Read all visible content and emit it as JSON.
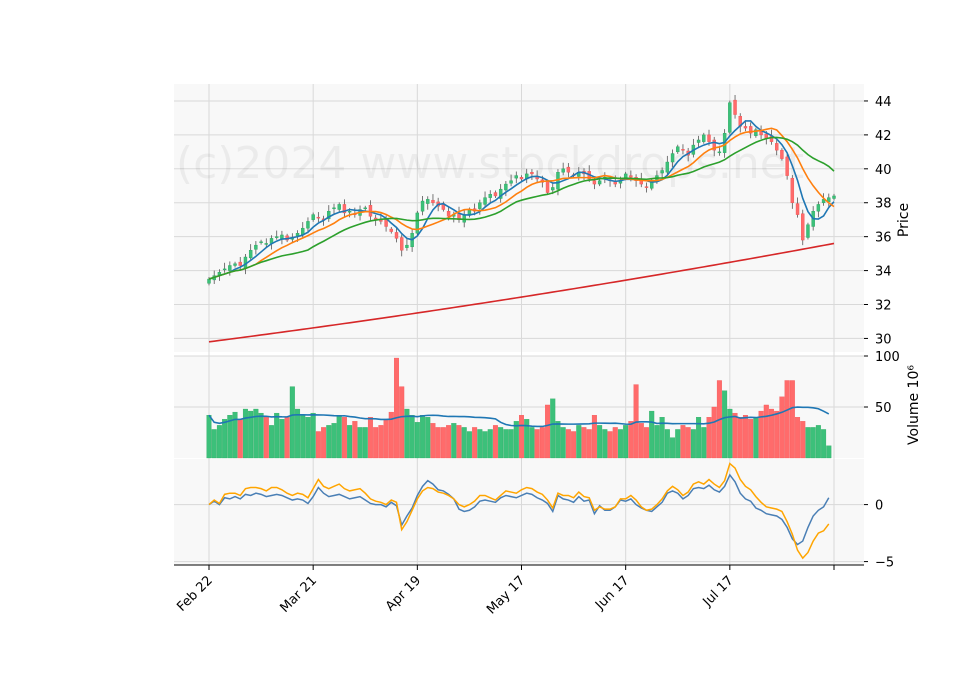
{
  "watermark": "(c)2024 www.stockdrops.net",
  "colors": {
    "panel_bg": "#f8f8f8",
    "grid": "#d9d9d9",
    "up": "#26a65b",
    "up_fill": "#3cc07a",
    "down": "#f05050",
    "down_fill": "#ff6b6b",
    "ma5": "#1f77b4",
    "ma10": "#ff7f0e",
    "ma20": "#2ca02c",
    "ma200": "#d62728",
    "vol_ma": "#1f77b4",
    "osc_blue": "#4a7fb5",
    "osc_orange": "#ffa500"
  },
  "chart_data": {
    "type": "candlestick",
    "x_tick_labels": [
      "Feb 22",
      "Mar 21",
      "Apr 19",
      "May 17",
      "Jun 17",
      "Jul 17",
      ""
    ],
    "x_tick_index": [
      0,
      20,
      40,
      60,
      80,
      100,
      120
    ],
    "n_sessions": 120,
    "price_panel": {
      "ylabel": "Price",
      "ylim": [
        29.2,
        45.0
      ],
      "yticks": [
        30,
        32,
        34,
        36,
        38,
        40,
        42,
        44
      ],
      "close": [
        33.5,
        33.7,
        33.9,
        34.1,
        34.3,
        34.4,
        34.3,
        34.8,
        35.2,
        35.5,
        35.7,
        35.6,
        35.9,
        36.0,
        36.1,
        35.8,
        35.9,
        36.2,
        36.5,
        36.9,
        37.3,
        37.1,
        37.0,
        37.5,
        37.7,
        37.9,
        37.4,
        37.5,
        37.3,
        37.6,
        37.7,
        37.2,
        37.0,
        36.9,
        36.6,
        36.3,
        35.9,
        35.2,
        35.5,
        36.2,
        37.4,
        38.1,
        38.2,
        38.0,
        37.8,
        37.6,
        37.2,
        37.3,
        37.0,
        37.3,
        37.6,
        37.5,
        38.0,
        38.3,
        38.5,
        38.4,
        38.8,
        39.1,
        39.3,
        39.6,
        39.4,
        39.7,
        39.7,
        39.4,
        39.2,
        38.6,
        38.9,
        39.8,
        40.0,
        39.8,
        39.6,
        39.8,
        39.7,
        39.4,
        39.1,
        39.3,
        39.5,
        39.3,
        39.1,
        39.3,
        39.7,
        39.5,
        39.3,
        39.1,
        38.9,
        39.3,
        39.6,
        39.9,
        40.4,
        40.9,
        41.3,
        41.1,
        40.8,
        41.4,
        41.7,
        42.0,
        41.6,
        41.1,
        41.0,
        42.1,
        43.9,
        43.2,
        42.5,
        42.4,
        42.1,
        42.3,
        42.0,
        41.8,
        41.6,
        41.1,
        40.6,
        39.6,
        38.0,
        37.3,
        35.8,
        36.7,
        37.5,
        37.9,
        38.2,
        38.3,
        38.4
      ],
      "moving_averages": [
        {
          "window": 5,
          "color_key": "ma5"
        },
        {
          "window": 10,
          "color_key": "ma10"
        },
        {
          "window": 20,
          "color_key": "ma20"
        },
        {
          "window": 200,
          "color_key": "ma200",
          "start": 29.8,
          "end": 35.6
        }
      ]
    },
    "volume_panel": {
      "ylabel": "Volume  10⁶",
      "ylim": [
        0,
        100
      ],
      "yticks": [
        50,
        100
      ],
      "values": [
        42,
        28,
        32,
        38,
        42,
        45,
        38,
        48,
        46,
        48,
        44,
        40,
        32,
        44,
        38,
        40,
        70,
        48,
        42,
        40,
        44,
        26,
        30,
        32,
        34,
        42,
        40,
        32,
        36,
        30,
        30,
        40,
        30,
        32,
        38,
        45,
        98,
        70,
        48,
        42,
        35,
        42,
        40,
        34,
        30,
        30,
        32,
        34,
        32,
        30,
        26,
        30,
        28,
        26,
        28,
        32,
        30,
        28,
        28,
        36,
        42,
        38,
        30,
        28,
        30,
        52,
        58,
        36,
        30,
        28,
        26,
        32,
        30,
        28,
        42,
        32,
        28,
        26,
        30,
        28,
        32,
        36,
        72,
        34,
        30,
        46,
        32,
        40,
        28,
        20,
        28,
        32,
        30,
        28,
        40,
        30,
        40,
        50,
        76,
        66,
        48,
        44,
        40,
        42,
        38,
        40,
        46,
        52,
        48,
        46,
        60,
        76,
        76,
        40,
        36,
        30,
        30,
        32,
        28,
        12
      ],
      "ma_window": 20
    },
    "oscillator_panel": {
      "ylim": [
        -5.3,
        4.0
      ],
      "yticks": [
        -5,
        0
      ],
      "series": [
        {
          "color_key": "osc_blue",
          "values": [
            0.0,
            0.3,
            0.0,
            0.6,
            0.5,
            0.7,
            0.5,
            0.9,
            0.8,
            1.0,
            0.9,
            0.7,
            0.8,
            0.9,
            0.8,
            0.6,
            0.4,
            0.5,
            0.4,
            0.1,
            0.7,
            1.5,
            1.0,
            0.7,
            0.8,
            0.9,
            0.7,
            0.5,
            0.6,
            0.7,
            0.4,
            0.1,
            0.0,
            0.0,
            -0.2,
            0.2,
            -0.1,
            -1.8,
            -1.0,
            -0.3,
            0.8,
            1.6,
            2.1,
            1.8,
            1.3,
            1.2,
            0.9,
            0.5,
            -0.4,
            -0.6,
            -0.5,
            -0.2,
            0.3,
            0.4,
            0.3,
            0.2,
            0.6,
            0.8,
            0.7,
            0.6,
            0.8,
            1.0,
            0.9,
            0.6,
            0.4,
            0.1,
            -0.6,
            0.8,
            0.5,
            0.4,
            0.2,
            0.7,
            0.3,
            0.4,
            -0.8,
            -0.1,
            -0.5,
            -0.5,
            -0.2,
            0.4,
            0.3,
            0.5,
            0.0,
            -0.3,
            -0.5,
            -0.6,
            -0.2,
            0.2,
            1.0,
            1.2,
            1.0,
            0.5,
            0.8,
            1.4,
            1.5,
            1.4,
            1.7,
            1.3,
            1.1,
            1.6,
            2.6,
            2.0,
            1.0,
            0.5,
            0.3,
            -0.3,
            -0.5,
            -0.8,
            -0.9,
            -1.0,
            -1.3,
            -2.0,
            -3.0,
            -3.5,
            -3.2,
            -2.0,
            -1.0,
            -0.5,
            -0.2,
            0.6
          ]
        },
        {
          "color_key": "osc_orange",
          "values": [
            0.0,
            0.4,
            0.1,
            0.9,
            1.0,
            1.0,
            0.8,
            1.4,
            1.5,
            1.5,
            1.4,
            1.2,
            1.5,
            1.5,
            1.3,
            1.0,
            0.8,
            1.0,
            0.9,
            0.6,
            1.4,
            2.2,
            1.6,
            1.4,
            1.6,
            1.8,
            1.4,
            1.2,
            1.3,
            1.4,
            1.0,
            0.5,
            0.3,
            0.2,
            0.0,
            0.4,
            0.2,
            -2.2,
            -1.5,
            -0.5,
            0.5,
            1.2,
            1.5,
            1.4,
            1.1,
            1.0,
            0.8,
            0.5,
            0.0,
            -0.2,
            0.0,
            0.3,
            0.8,
            0.8,
            0.6,
            0.4,
            0.8,
            1.2,
            1.1,
            1.0,
            1.3,
            1.5,
            1.4,
            1.1,
            0.9,
            0.4,
            -0.3,
            1.0,
            0.8,
            0.8,
            0.6,
            1.1,
            0.7,
            0.6,
            -0.5,
            -0.2,
            -0.4,
            -0.4,
            -0.2,
            0.5,
            0.5,
            0.8,
            0.4,
            -0.2,
            -0.5,
            -0.4,
            0.0,
            0.5,
            1.2,
            1.6,
            1.3,
            0.8,
            1.1,
            1.8,
            2.0,
            1.8,
            2.2,
            1.8,
            1.5,
            2.1,
            3.6,
            3.2,
            2.2,
            1.6,
            1.3,
            0.7,
            0.2,
            -0.2,
            -0.3,
            -0.4,
            -0.6,
            -1.5,
            -2.6,
            -4.0,
            -4.7,
            -4.2,
            -3.2,
            -2.5,
            -2.3,
            -1.7
          ]
        }
      ]
    }
  }
}
